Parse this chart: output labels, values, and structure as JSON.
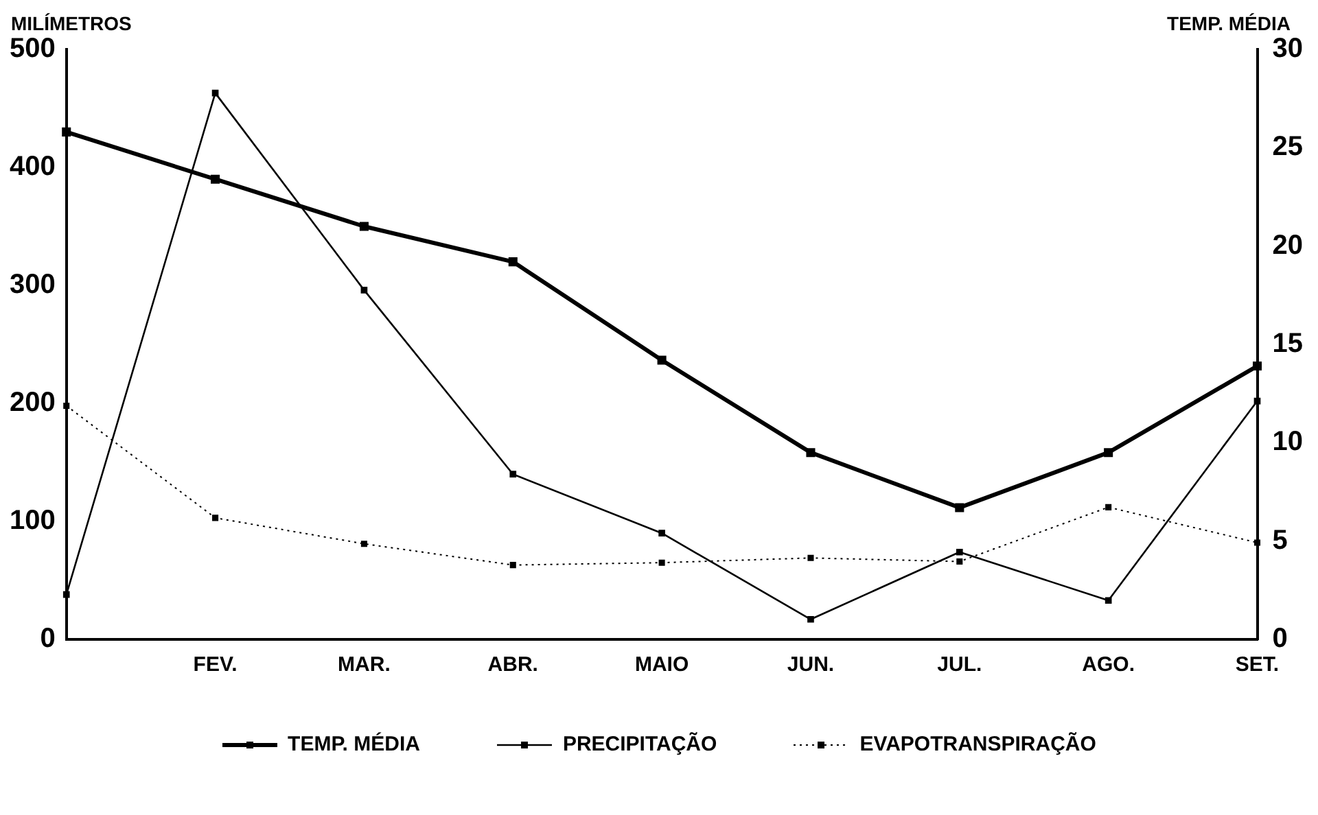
{
  "chart_data": {
    "type": "line",
    "ylabel": "MILÍMETROS",
    "y2label": "TEMP. MÉDIA",
    "categories": [
      null,
      "FEV.",
      "MAR.",
      "ABR.",
      "MAIO",
      "JUN.",
      "JUL.",
      "AGO.",
      "SET."
    ],
    "ylim": [
      0,
      500
    ],
    "yticks": [
      0,
      100,
      200,
      300,
      400,
      500
    ],
    "y2lim": [
      0,
      30
    ],
    "y2ticks": [
      0,
      5,
      10,
      15,
      20,
      25,
      30
    ],
    "grid": false,
    "legend": "bottom",
    "marker": "square",
    "series": [
      {
        "name": "TEMP. MÉDIA",
        "color": "#000000",
        "axis": "y2",
        "line_style": "solid",
        "values": [
          25.8,
          23.4,
          21.0,
          19.2,
          14.2,
          9.5,
          6.7,
          9.5,
          13.9
        ]
      },
      {
        "name": "PRECIPITAÇÃO",
        "color": "#000000",
        "line_style": "solid",
        "values": [
          38,
          463,
          296,
          140,
          90,
          17,
          74,
          33,
          202
        ]
      },
      {
        "name": "EVAPOTRANSPIRAÇÃO",
        "color": "#000000",
        "line_style": "dotted",
        "values": [
          198,
          103,
          81,
          63,
          65,
          69,
          66,
          112,
          82
        ]
      }
    ]
  }
}
